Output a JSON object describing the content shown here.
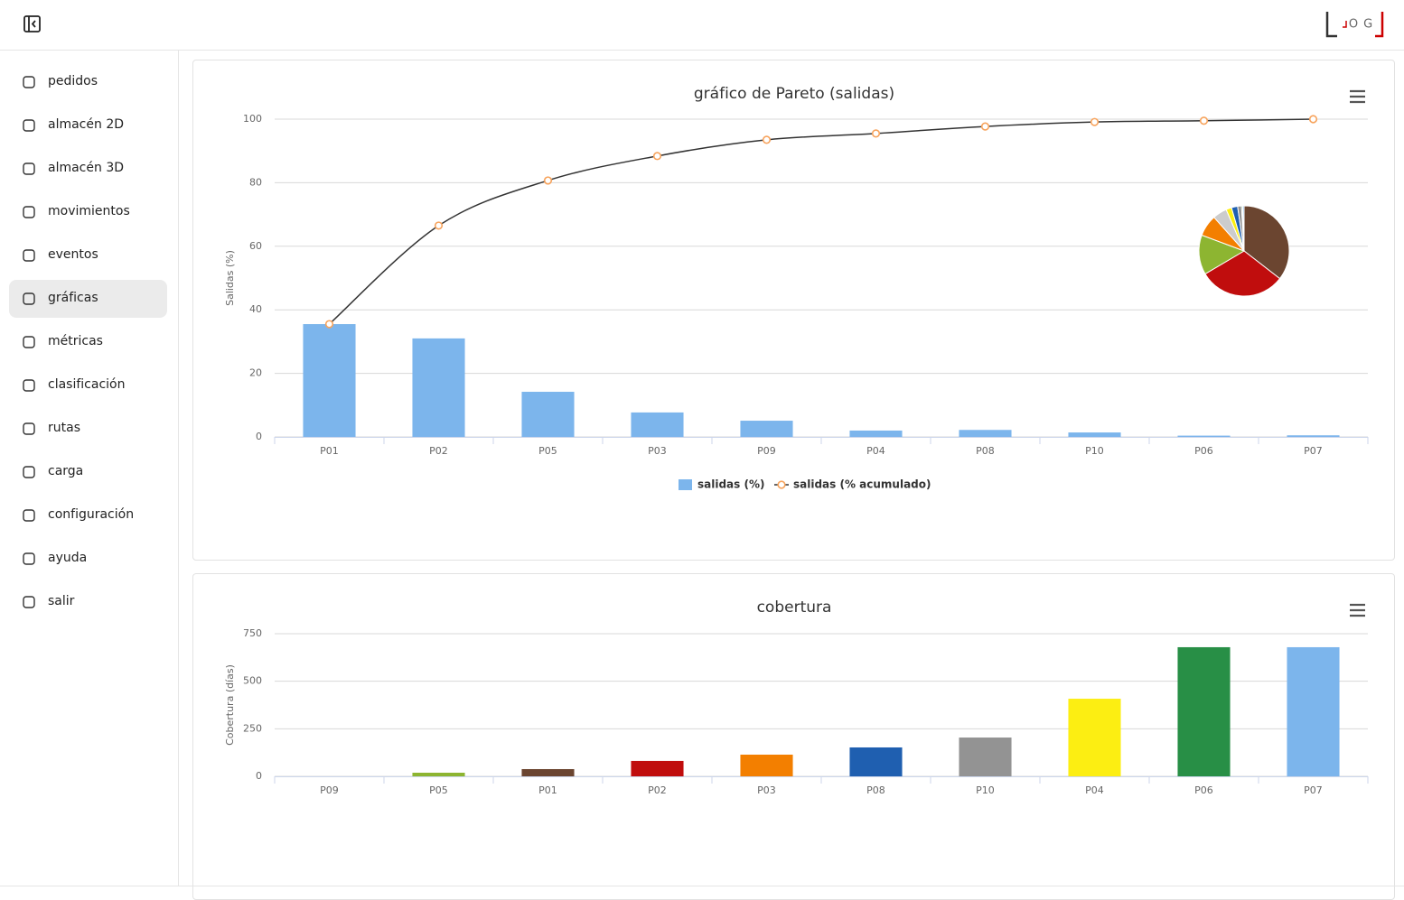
{
  "logo_text": "OG",
  "sidebar": {
    "items": [
      "pedidos",
      "almacén 2D",
      "almacén 3D",
      "movimientos",
      "eventos",
      "gráficas",
      "métricas",
      "clasificación",
      "rutas",
      "carga",
      "configuración",
      "ayuda",
      "salir"
    ],
    "active": 5
  },
  "chart_data": [
    {
      "type": "pareto",
      "title": "gráfico de Pareto (salidas)",
      "y_label": "Salidas (%)",
      "categories": [
        "P01",
        "P02",
        "P05",
        "P03",
        "P09",
        "P04",
        "P08",
        "P10",
        "P06",
        "P07"
      ],
      "series": [
        {
          "name": "salidas (%)",
          "type": "bar",
          "color": "#7cb5ec",
          "values": [
            35.5,
            31,
            14.2,
            7.7,
            5.1,
            2.0,
            2.2,
            1.4,
            0.4,
            0.5
          ]
        },
        {
          "name": "salidas (% acumulado)",
          "type": "line",
          "color": "#f7a35c",
          "values": [
            35.5,
            66.5,
            80.7,
            88.4,
            93.5,
            95.5,
            97.7,
            99.1,
            99.5,
            100
          ]
        }
      ],
      "pie_colors": [
        "#6b4530",
        "#c00d0d",
        "#8db531",
        "#f37f00",
        "#cccccc",
        "#fcee12",
        "#1f5fb0",
        "#939393",
        "#288f46",
        "#7ab3ea"
      ],
      "ylim": [
        0,
        100
      ],
      "yticks": [
        0,
        20,
        40,
        60,
        80,
        100
      ],
      "grid": true
    },
    {
      "type": "bar",
      "title": "cobertura",
      "y_label": "Cobertura (días)",
      "categories": [
        "P09",
        "P05",
        "P01",
        "P02",
        "P03",
        "P08",
        "P10",
        "P04",
        "P06",
        "P07"
      ],
      "values": [
        0,
        19,
        38,
        81,
        114,
        152,
        204,
        408,
        679,
        679
      ],
      "colors": [
        "#7ab3ea",
        "#8db531",
        "#6b4530",
        "#c00d0d",
        "#f37f00",
        "#1f5fb0",
        "#939393",
        "#fcee12",
        "#288f46",
        "#7cb5ec"
      ],
      "ylim": [
        0,
        750
      ],
      "yticks": [
        0,
        250,
        500,
        750
      ],
      "grid": true
    }
  ]
}
